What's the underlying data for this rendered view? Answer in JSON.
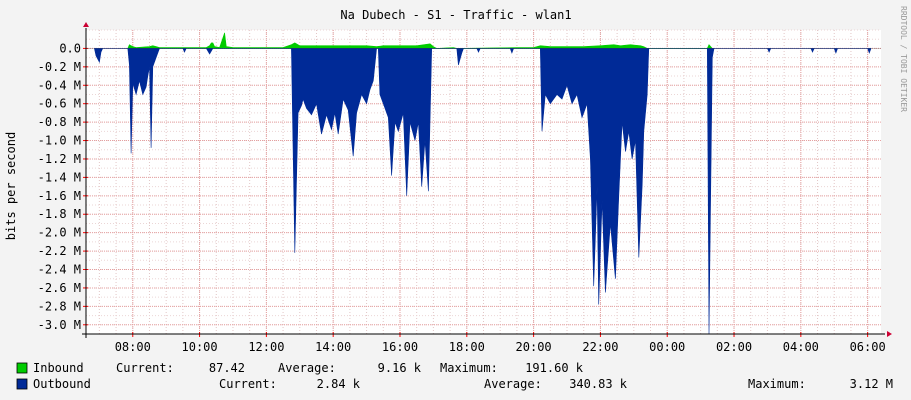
{
  "chart_data": {
    "type": "area",
    "title": "Na Dubech - S1 - Traffic - wlan1",
    "ylabel": "bits per second",
    "watermark": "RRDTOOL / TOBI OETIKER",
    "ylim": [
      -3.1,
      0.2
    ],
    "xlim_hours": [
      6.6,
      30.4
    ],
    "x_ticks": [
      {
        "label": "08:00",
        "t": 8
      },
      {
        "label": "10:00",
        "t": 10
      },
      {
        "label": "12:00",
        "t": 12
      },
      {
        "label": "14:00",
        "t": 14
      },
      {
        "label": "16:00",
        "t": 16
      },
      {
        "label": "18:00",
        "t": 18
      },
      {
        "label": "20:00",
        "t": 20
      },
      {
        "label": "22:00",
        "t": 22
      },
      {
        "label": "00:00",
        "t": 24
      },
      {
        "label": "02:00",
        "t": 26
      },
      {
        "label": "04:00",
        "t": 28
      },
      {
        "label": "06:00",
        "t": 30
      }
    ],
    "y_ticks": [
      {
        "label": "0.0",
        "v": 0.0
      },
      {
        "label": "-0.2 M",
        "v": -0.2
      },
      {
        "label": "-0.4 M",
        "v": -0.4
      },
      {
        "label": "-0.6 M",
        "v": -0.6
      },
      {
        "label": "-0.8 M",
        "v": -0.8
      },
      {
        "label": "-1.0 M",
        "v": -1.0
      },
      {
        "label": "-1.2 M",
        "v": -1.2
      },
      {
        "label": "-1.4 M",
        "v": -1.4
      },
      {
        "label": "-1.6 M",
        "v": -1.6
      },
      {
        "label": "-1.8 M",
        "v": -1.8
      },
      {
        "label": "-2.0 M",
        "v": -2.0
      },
      {
        "label": "-2.2 M",
        "v": -2.2
      },
      {
        "label": "-2.4 M",
        "v": -2.4
      },
      {
        "label": "-2.6 M",
        "v": -2.6
      },
      {
        "label": "-2.8 M",
        "v": -2.8
      },
      {
        "label": "-3.0 M",
        "v": -3.0
      }
    ],
    "series": [
      {
        "name": "Inbound",
        "color": "#00cc00",
        "unit": "M bits/s",
        "points": [
          [
            7.85,
            0.0
          ],
          [
            7.9,
            0.04
          ],
          [
            7.95,
            0.03
          ],
          [
            8.0,
            0.02
          ],
          [
            8.1,
            0.01
          ],
          [
            8.5,
            0.02
          ],
          [
            8.6,
            0.03
          ],
          [
            8.7,
            0.02
          ],
          [
            8.8,
            0.01
          ],
          [
            9.3,
            0.01
          ],
          [
            9.6,
            0.01
          ],
          [
            10.2,
            0.01
          ],
          [
            10.3,
            0.03
          ],
          [
            10.35,
            0.06
          ],
          [
            10.4,
            0.06
          ],
          [
            10.45,
            0.02
          ],
          [
            10.6,
            0.01
          ],
          [
            10.75,
            0.17
          ],
          [
            10.8,
            0.02
          ],
          [
            11.0,
            0.01
          ],
          [
            12.5,
            0.01
          ],
          [
            12.75,
            0.04
          ],
          [
            12.85,
            0.06
          ],
          [
            13.0,
            0.03
          ],
          [
            13.5,
            0.03
          ],
          [
            14.0,
            0.03
          ],
          [
            14.5,
            0.03
          ],
          [
            15.0,
            0.03
          ],
          [
            15.3,
            0.02
          ],
          [
            15.5,
            0.03
          ],
          [
            16.0,
            0.03
          ],
          [
            16.5,
            0.03
          ],
          [
            16.9,
            0.05
          ],
          [
            17.0,
            0.02
          ],
          [
            17.1,
            0.0
          ],
          [
            17.6,
            0.01
          ],
          [
            17.7,
            0.0
          ],
          [
            19.5,
            0.01
          ],
          [
            20.0,
            0.01
          ],
          [
            20.2,
            0.03
          ],
          [
            20.5,
            0.02
          ],
          [
            21.0,
            0.02
          ],
          [
            21.5,
            0.02
          ],
          [
            22.0,
            0.03
          ],
          [
            22.4,
            0.04
          ],
          [
            22.6,
            0.03
          ],
          [
            22.9,
            0.04
          ],
          [
            23.2,
            0.03
          ],
          [
            23.3,
            0.02
          ],
          [
            23.4,
            0.0
          ],
          [
            25.2,
            0.0
          ],
          [
            25.25,
            0.04
          ],
          [
            25.35,
            0.0
          ]
        ]
      },
      {
        "name": "Outbound",
        "color": "#002a97",
        "unit": "M bits/s",
        "points": [
          [
            6.85,
            0.0
          ],
          [
            6.9,
            -0.08
          ],
          [
            7.0,
            -0.15
          ],
          [
            7.05,
            -0.04
          ],
          [
            7.1,
            0.0
          ],
          [
            7.85,
            0.0
          ],
          [
            7.9,
            -0.18
          ],
          [
            7.95,
            -1.14
          ],
          [
            8.0,
            -0.38
          ],
          [
            8.1,
            -0.5
          ],
          [
            8.2,
            -0.35
          ],
          [
            8.3,
            -0.5
          ],
          [
            8.4,
            -0.42
          ],
          [
            8.45,
            -0.3
          ],
          [
            8.5,
            -0.2
          ],
          [
            8.55,
            -1.08
          ],
          [
            8.6,
            -0.2
          ],
          [
            8.7,
            -0.1
          ],
          [
            8.8,
            0.0
          ],
          [
            9.5,
            0.0
          ],
          [
            9.55,
            -0.04
          ],
          [
            9.6,
            0.0
          ],
          [
            10.2,
            0.0
          ],
          [
            10.3,
            -0.06
          ],
          [
            10.4,
            0.0
          ],
          [
            12.75,
            0.0
          ],
          [
            12.85,
            -2.22
          ],
          [
            12.95,
            -0.7
          ],
          [
            13.05,
            -0.62
          ],
          [
            13.1,
            -0.55
          ],
          [
            13.2,
            -0.65
          ],
          [
            13.35,
            -0.72
          ],
          [
            13.5,
            -0.6
          ],
          [
            13.65,
            -0.93
          ],
          [
            13.8,
            -0.72
          ],
          [
            13.95,
            -0.88
          ],
          [
            14.05,
            -0.7
          ],
          [
            14.15,
            -0.93
          ],
          [
            14.3,
            -0.55
          ],
          [
            14.45,
            -0.67
          ],
          [
            14.6,
            -1.17
          ],
          [
            14.7,
            -0.7
          ],
          [
            14.85,
            -0.5
          ],
          [
            15.0,
            -0.6
          ],
          [
            15.1,
            -0.45
          ],
          [
            15.2,
            -0.35
          ],
          [
            15.3,
            0.0
          ],
          [
            15.35,
            0.0
          ],
          [
            15.4,
            -0.5
          ],
          [
            15.5,
            -0.6
          ],
          [
            15.65,
            -0.75
          ],
          [
            15.75,
            -1.38
          ],
          [
            15.85,
            -0.8
          ],
          [
            15.95,
            -0.9
          ],
          [
            16.1,
            -0.7
          ],
          [
            16.2,
            -1.6
          ],
          [
            16.3,
            -0.8
          ],
          [
            16.45,
            -1.0
          ],
          [
            16.55,
            -0.8
          ],
          [
            16.65,
            -1.5
          ],
          [
            16.75,
            -1.0
          ],
          [
            16.85,
            -1.55
          ],
          [
            16.95,
            0.0
          ],
          [
            17.7,
            0.0
          ],
          [
            17.75,
            -0.18
          ],
          [
            17.85,
            -0.05
          ],
          [
            17.9,
            0.0
          ],
          [
            18.3,
            0.0
          ],
          [
            18.35,
            -0.04
          ],
          [
            18.4,
            0.0
          ],
          [
            19.3,
            0.0
          ],
          [
            19.35,
            -0.05
          ],
          [
            19.4,
            0.0
          ],
          [
            20.2,
            0.0
          ],
          [
            20.25,
            -0.9
          ],
          [
            20.35,
            -0.5
          ],
          [
            20.5,
            -0.6
          ],
          [
            20.7,
            -0.5
          ],
          [
            20.85,
            -0.55
          ],
          [
            21.0,
            -0.4
          ],
          [
            21.15,
            -0.6
          ],
          [
            21.3,
            -0.5
          ],
          [
            21.45,
            -0.75
          ],
          [
            21.6,
            -0.6
          ],
          [
            21.7,
            -1.2
          ],
          [
            21.8,
            -2.58
          ],
          [
            21.9,
            -1.5
          ],
          [
            21.95,
            -2.78
          ],
          [
            22.05,
            -1.65
          ],
          [
            22.15,
            -2.65
          ],
          [
            22.3,
            -1.9
          ],
          [
            22.45,
            -2.5
          ],
          [
            22.55,
            -1.6
          ],
          [
            22.65,
            -0.8
          ],
          [
            22.75,
            -1.12
          ],
          [
            22.85,
            -0.9
          ],
          [
            22.95,
            -1.2
          ],
          [
            23.05,
            -1.0
          ],
          [
            23.15,
            -2.27
          ],
          [
            23.25,
            -1.48
          ],
          [
            23.3,
            -0.9
          ],
          [
            23.4,
            -0.5
          ],
          [
            23.45,
            0.0
          ],
          [
            25.2,
            0.0
          ],
          [
            25.25,
            -3.1
          ],
          [
            25.35,
            -0.1
          ],
          [
            25.4,
            0.0
          ],
          [
            27.0,
            0.0
          ],
          [
            27.05,
            -0.04
          ],
          [
            27.1,
            0.0
          ],
          [
            28.3,
            0.0
          ],
          [
            28.35,
            -0.04
          ],
          [
            28.4,
            0.0
          ],
          [
            29.0,
            0.0
          ],
          [
            29.05,
            -0.05
          ],
          [
            29.1,
            0.0
          ],
          [
            30.0,
            0.0
          ],
          [
            30.05,
            -0.05
          ],
          [
            30.1,
            0.0
          ]
        ]
      }
    ],
    "legend": [
      {
        "name": "Inbound",
        "color": "#00cc00",
        "current_label": "Current:",
        "current": "87.42",
        "average_label": "Average:",
        "average": "9.16 k",
        "maximum_label": "Maximum:",
        "maximum": "191.60 k"
      },
      {
        "name": "Outbound",
        "color": "#002a97",
        "current_label": "Current:",
        "current": "2.84 k",
        "average_label": "Average:",
        "average": "340.83 k",
        "maximum_label": "Maximum:",
        "maximum": "3.12 M"
      }
    ]
  }
}
